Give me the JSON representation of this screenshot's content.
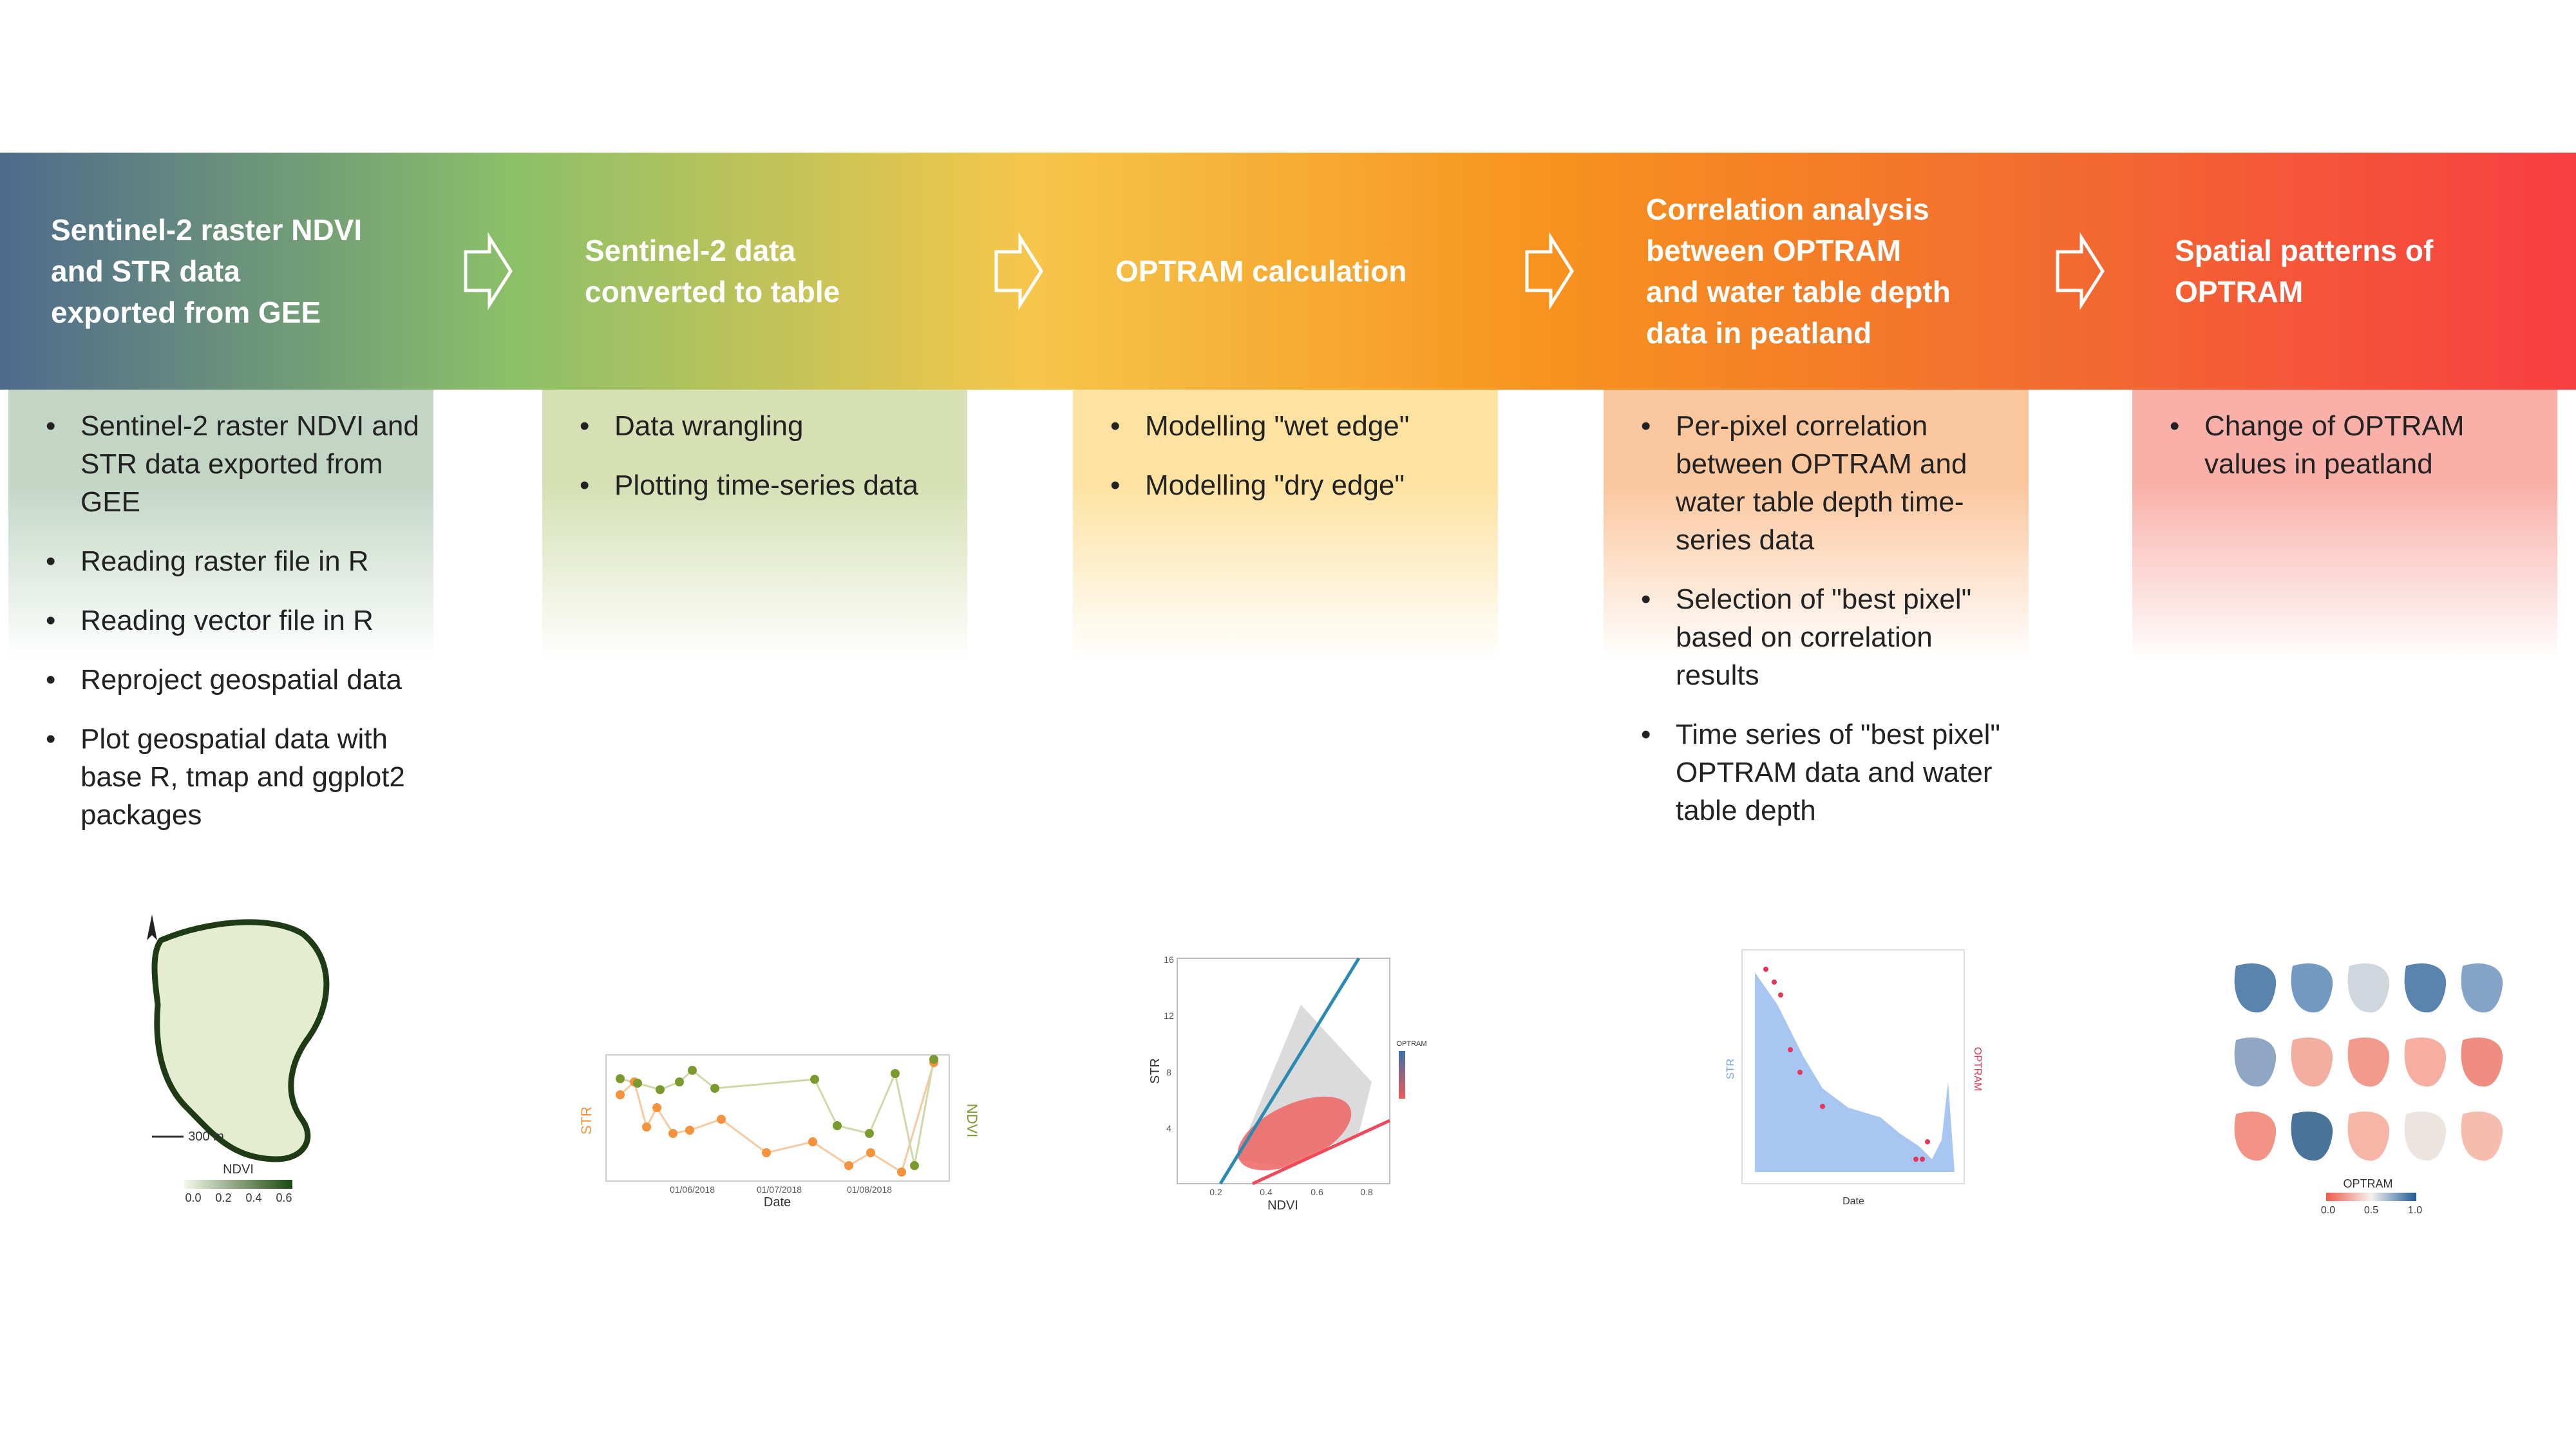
{
  "steps": [
    {
      "title_lines": [
        "Sentinel-2 raster NDVI",
        "and STR data",
        "exported from GEE"
      ],
      "bullets": [
        "Sentinel-2 raster NDVI and STR data exported from GEE",
        "Reading raster file in R",
        "Reading vector file in R",
        "Reproject geospatial data",
        "Plot geospatial data with base R, tmap and ggplot2 packages"
      ],
      "figure": {
        "axis_label": "NDVI",
        "scalebar": "300 m",
        "legend_ticks": [
          "0.0",
          "0.2",
          "0.4",
          "0.6"
        ]
      }
    },
    {
      "title_lines": [
        "Sentinel-2 data",
        "converted to table"
      ],
      "bullets": [
        "Data wrangling",
        "Plotting time-series data"
      ],
      "figure": {
        "y_label": "STR",
        "y2_label": "NDVI",
        "x_label": "Date",
        "x_ticks": [
          "01/06/2018",
          "01/07/2018",
          "01/08/2018"
        ]
      }
    },
    {
      "title_lines": [
        "OPTRAM calculation"
      ],
      "bullets": [
        "Modelling \"wet edge\"",
        "Modelling \"dry edge\""
      ],
      "figure": {
        "y_label": "STR",
        "x_label": "NDVI",
        "legend_title": "OPTRAM",
        "y_ticks": [
          "4",
          "8",
          "12",
          "16"
        ],
        "x_ticks": [
          "0.2",
          "0.4",
          "0.6",
          "0.8"
        ]
      }
    },
    {
      "title_lines": [
        "Correlation analysis",
        "between OPTRAM",
        "and water table depth",
        "data in peatland"
      ],
      "bullets": [
        "Per-pixel correlation between OPTRAM and water table depth time-series data",
        "Selection of \"best pixel\" based on correlation results",
        "Time series of \"best pixel\" OPTRAM data and water table depth"
      ],
      "figure": {
        "y_label": "STR",
        "y2_label": "OPTRAM",
        "x_label": "Date"
      }
    },
    {
      "title_lines": [
        "Spatial patterns of",
        "OPTRAM"
      ],
      "bullets": [
        "Change of OPTRAM values in peatland"
      ],
      "figure": {
        "legend_title": "OPTRAM",
        "legend_ticks": [
          "0.0",
          "0.5",
          "1.0"
        ]
      }
    }
  ]
}
